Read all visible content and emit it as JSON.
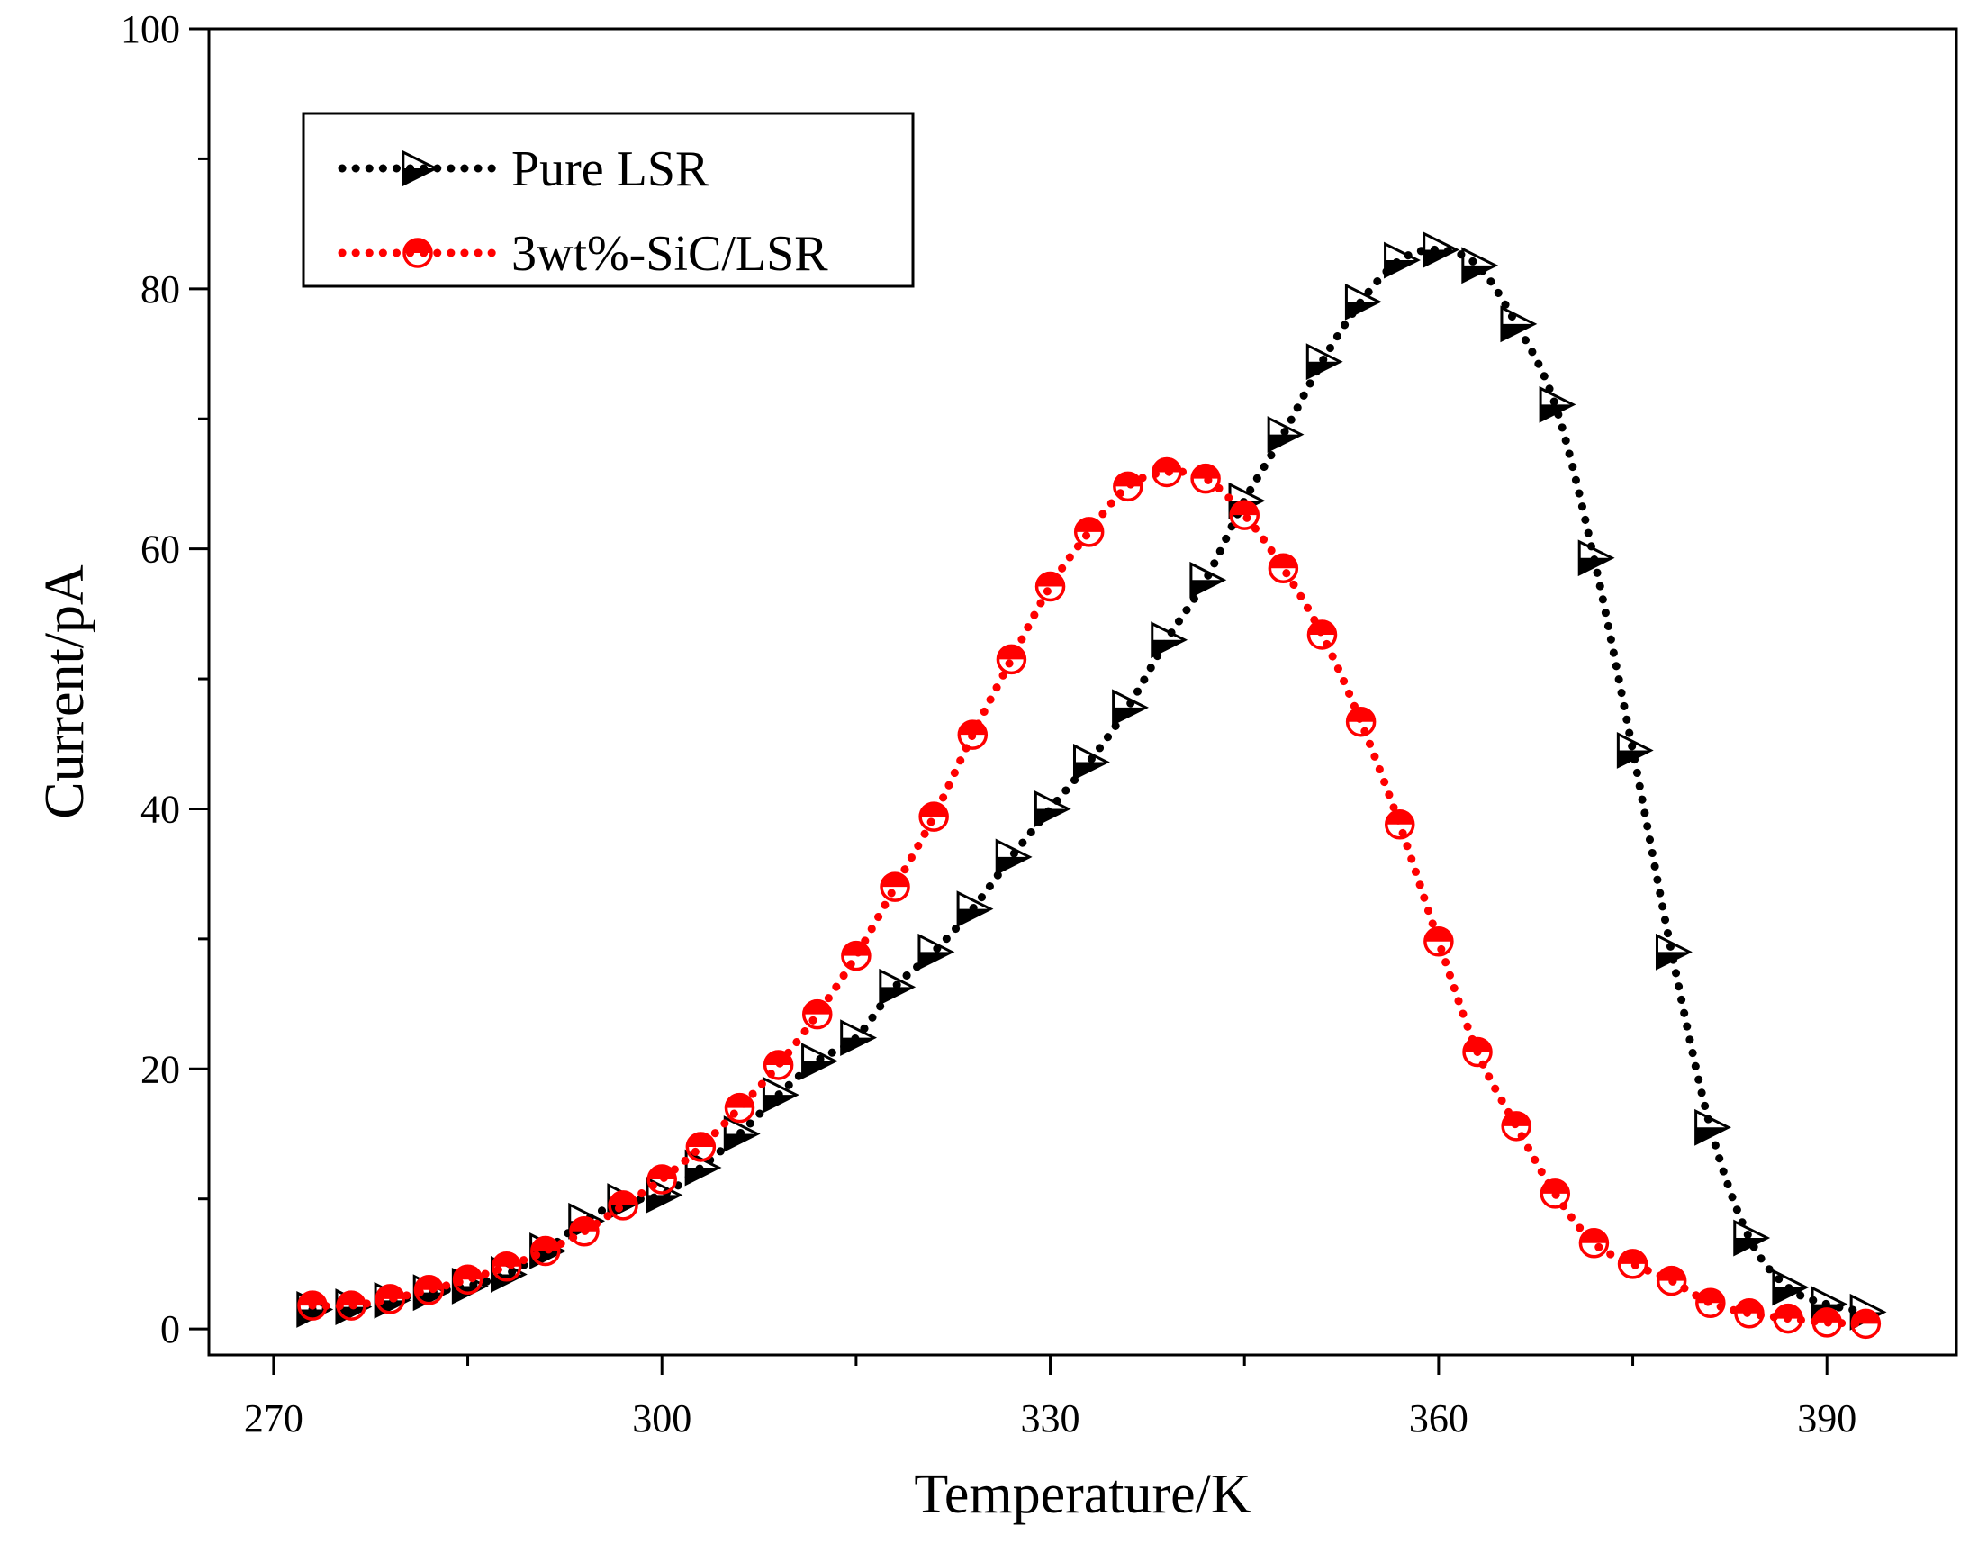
{
  "chart_data": {
    "type": "line",
    "xlabel": "Temperature/K",
    "ylabel": "Current/pA",
    "xlim": [
      265,
      400
    ],
    "ylim": [
      -2,
      100
    ],
    "x_ticks": [
      270,
      300,
      330,
      360,
      390
    ],
    "y_ticks": [
      0,
      20,
      40,
      60,
      80,
      100
    ],
    "legend_position": "top-left",
    "grid": false,
    "series": [
      {
        "name": "Pure LSR",
        "color": "#000000",
        "marker": "right-triangle-half-filled",
        "line_style": "dotted",
        "x": [
          273,
          276,
          279,
          282,
          285,
          288,
          291,
          294,
          297,
          300,
          303,
          306,
          309,
          312,
          315,
          318,
          321,
          324,
          327,
          330,
          333,
          336,
          339,
          342,
          345,
          348,
          351,
          354,
          357,
          360,
          363,
          366,
          369,
          372,
          375,
          378,
          381,
          384,
          387,
          390,
          393
        ],
        "y": [
          1.5,
          1.7,
          2.2,
          2.8,
          3.3,
          4.2,
          6,
          8.3,
          9.8,
          10.3,
          12.4,
          15,
          18,
          20.6,
          22.4,
          26.3,
          29,
          32.3,
          36.3,
          40,
          43.6,
          47.8,
          53,
          57.6,
          63.7,
          68.8,
          74.4,
          79,
          82.2,
          83,
          81.8,
          77.3,
          71.1,
          59.3,
          44.5,
          29,
          15.5,
          7,
          3.2,
          1.9,
          1.3
        ]
      },
      {
        "name": "3wt%-SiC/LSR",
        "color": "#ff0000",
        "marker": "circle-half-filled",
        "line_style": "dotted",
        "x": [
          273,
          276,
          279,
          282,
          285,
          288,
          291,
          294,
          297,
          300,
          303,
          306,
          309,
          312,
          315,
          318,
          321,
          324,
          327,
          330,
          333,
          336,
          339,
          342,
          345,
          348,
          351,
          354,
          357,
          360,
          363,
          366,
          369,
          372,
          375,
          378,
          381,
          384,
          387,
          390,
          393
        ],
        "y": [
          1.8,
          1.8,
          2.3,
          3,
          3.8,
          4.8,
          6,
          7.5,
          9.5,
          11.5,
          14,
          17,
          20.3,
          24.2,
          28.7,
          34,
          39.4,
          45.7,
          51.5,
          57.1,
          61.3,
          64.8,
          65.9,
          65.4,
          62.6,
          58.5,
          53.4,
          46.7,
          38.8,
          29.8,
          21.3,
          15.6,
          10.4,
          6.6,
          5,
          3.7,
          2,
          1.2,
          0.8,
          0.5,
          0.4
        ]
      }
    ]
  }
}
